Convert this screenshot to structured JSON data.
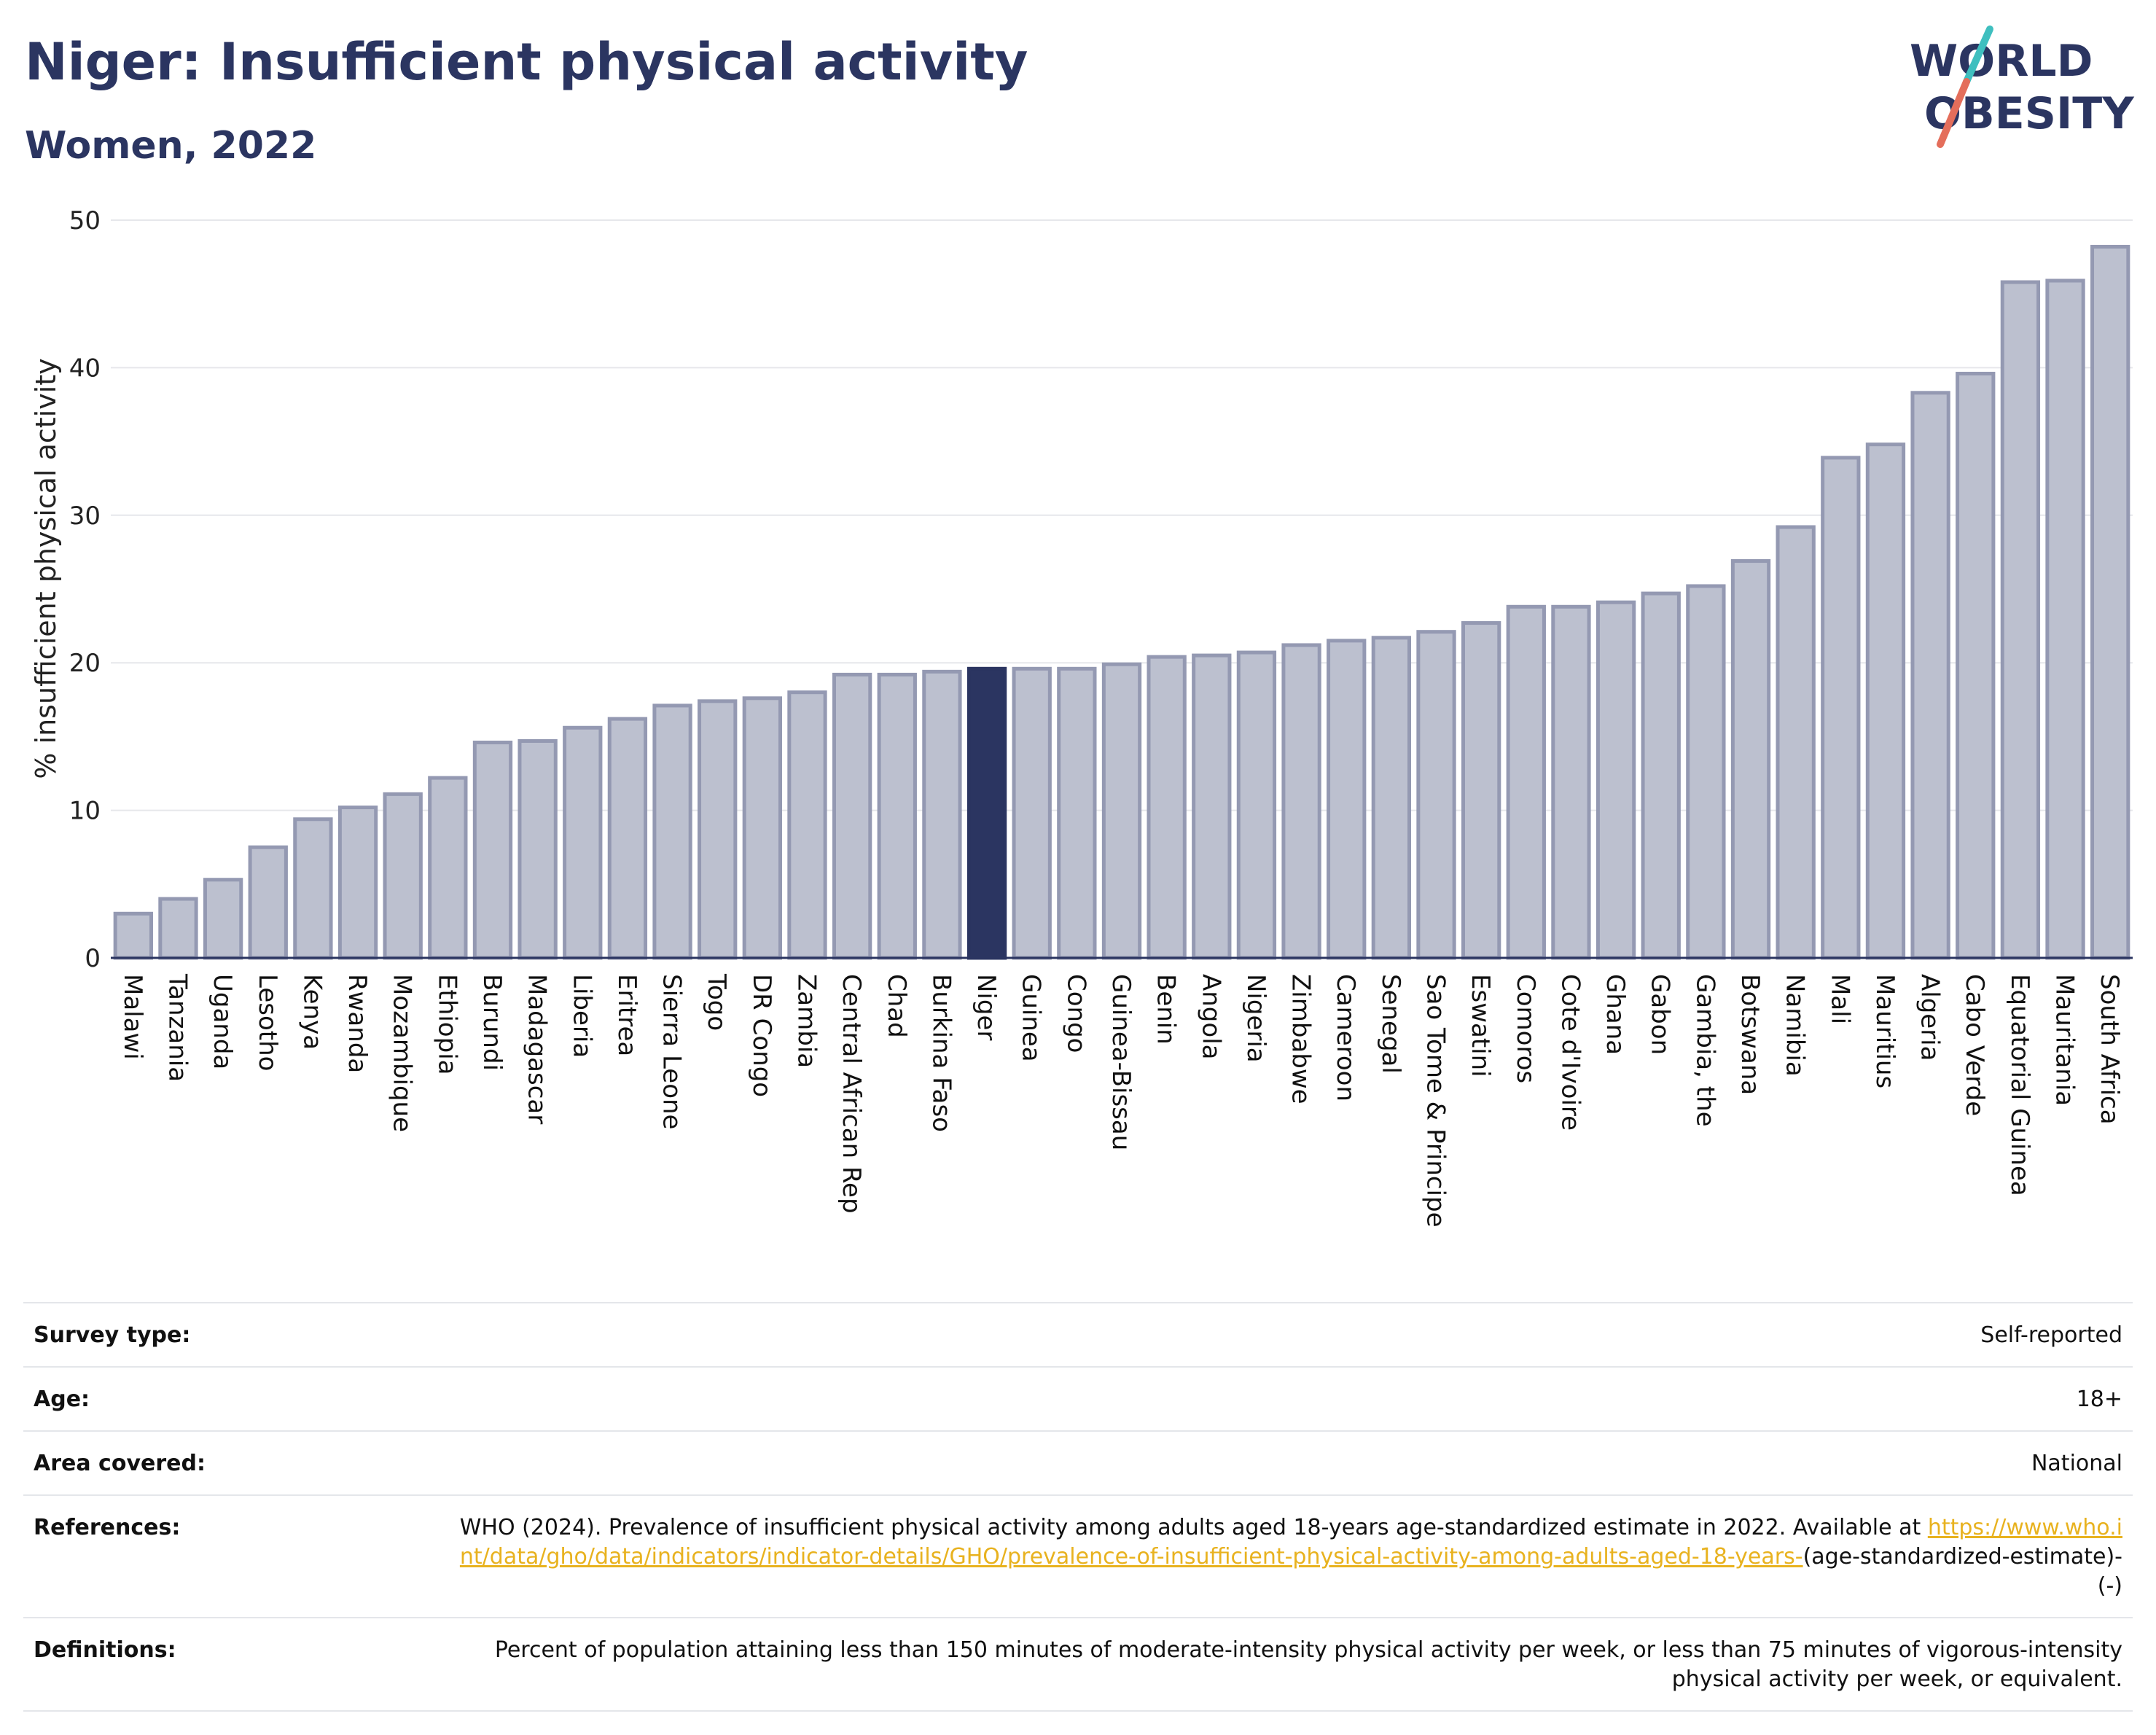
{
  "header": {
    "title": "Niger: Insufficient physical activity",
    "subtitle": "Women, 2022"
  },
  "logo": {
    "line1": "WORLD",
    "line2": "OBESITY",
    "text_color": "#2b3561",
    "slash_colors": [
      "#3fbfbf",
      "#e46e5b"
    ]
  },
  "colors": {
    "bar_fill": "#bcc0cf",
    "bar_stroke": "#9499b2",
    "highlight_fill": "#2b3561",
    "grid": "#e6e7eb",
    "axis": "#2b3561"
  },
  "chart_data": {
    "type": "bar",
    "ylabel": "% insufficient physical activity",
    "xlabel": "",
    "ylim": [
      0,
      50
    ],
    "yticks": [
      0,
      10,
      20,
      30,
      40,
      50
    ],
    "grid": true,
    "highlight": "Niger",
    "categories": [
      "Malawi",
      "Tanzania",
      "Uganda",
      "Lesotho",
      "Kenya",
      "Rwanda",
      "Mozambique",
      "Ethiopia",
      "Burundi",
      "Madagascar",
      "Liberia",
      "Eritrea",
      "Sierra Leone",
      "Togo",
      "DR Congo",
      "Zambia",
      "Central African Rep",
      "Chad",
      "Burkina Faso",
      "Niger",
      "Guinea",
      "Congo",
      "Guinea-Bissau",
      "Benin",
      "Angola",
      "Nigeria",
      "Zimbabwe",
      "Cameroon",
      "Senegal",
      "Sao Tome & Principe",
      "Eswatini",
      "Comoros",
      "Cote d'Ivoire",
      "Ghana",
      "Gabon",
      "Gambia, the",
      "Botswana",
      "Namibia",
      "Mali",
      "Mauritius",
      "Algeria",
      "Cabo Verde",
      "Equatorial Guinea",
      "Mauritania",
      "South Africa"
    ],
    "values": [
      3.0,
      4.0,
      5.3,
      7.5,
      9.4,
      10.2,
      11.1,
      12.2,
      14.6,
      14.7,
      15.6,
      16.2,
      17.1,
      17.4,
      17.6,
      18.0,
      19.2,
      19.2,
      19.4,
      19.6,
      19.6,
      19.6,
      19.9,
      20.4,
      20.5,
      20.7,
      21.2,
      21.5,
      21.7,
      22.1,
      22.7,
      23.8,
      23.8,
      24.1,
      24.7,
      25.2,
      26.9,
      29.2,
      33.9,
      34.8,
      38.3,
      39.6,
      45.8,
      45.9,
      48.2
    ]
  },
  "info": {
    "survey_type": {
      "label": "Survey type:",
      "value": "Self-reported"
    },
    "age": {
      "label": "Age:",
      "value": "18+"
    },
    "area_covered": {
      "label": "Area covered:",
      "value": "National"
    },
    "references": {
      "label": "References:",
      "text": "WHO (2024). Prevalence of insufficient physical activity among adults aged 18-years age-standardized estimate in 2022. Available at",
      "link": "https://www.who.int/data/gho/data/indicators/indicator-details/GHO/prevalence-of-insufficient-physical-activity-among-adults-aged-18-years-",
      "suffix": "(age-standardized-estimate)-(-)"
    },
    "definitions": {
      "label": "Definitions:",
      "value": "Percent of population attaining less than 150 minutes of moderate-intensity physical activity per week, or less than 75 minutes of vigorous-intensity physical activity per week, or equivalent."
    }
  }
}
